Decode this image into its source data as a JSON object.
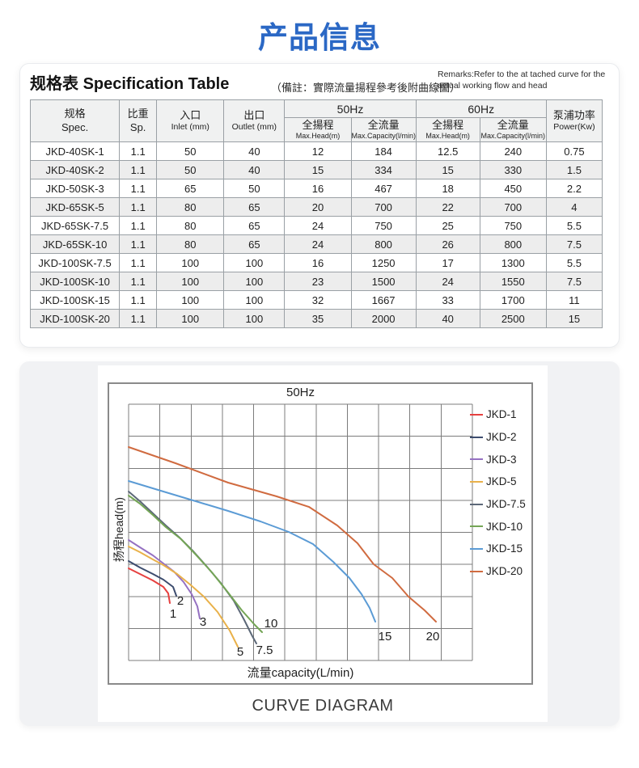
{
  "page": {
    "title": "产品信息",
    "title_color": "#2b68c5"
  },
  "spec_section": {
    "heading_cn": "规格表",
    "heading_en": "Specification Table",
    "remark_cn": "（備註：實際流量揚程參考後附曲線圖）",
    "remark_en_line1": "Remarks:Refer to the at tached curve for the",
    "remark_en_line2": "actual working flow and head",
    "table": {
      "groups": [
        {
          "label": "50Hz"
        },
        {
          "label": "60Hz"
        }
      ],
      "columns": [
        {
          "cn": "规格",
          "en": "Spec."
        },
        {
          "cn": "比重",
          "en": "Sp."
        },
        {
          "cn": "入口",
          "en": "Inlet (mm)"
        },
        {
          "cn": "出口",
          "en": "Outlet (mm)"
        },
        {
          "cn": "全揚程",
          "en": "Max.Head(m)"
        },
        {
          "cn": "全流量",
          "en": "Max.Capacity(l/min)"
        },
        {
          "cn": "全揚程",
          "en": "Max.Head(m)"
        },
        {
          "cn": "全流量",
          "en": "Max.Capacity(l/min)"
        },
        {
          "cn": "泵浦功率",
          "en": "Power(Kw)"
        }
      ],
      "rows": [
        [
          "JKD-40SK-1",
          "1.1",
          "50",
          "40",
          "12",
          "184",
          "12.5",
          "240",
          "0.75"
        ],
        [
          "JKD-40SK-2",
          "1.1",
          "50",
          "40",
          "15",
          "334",
          "15",
          "330",
          "1.5"
        ],
        [
          "JKD-50SK-3",
          "1.1",
          "65",
          "50",
          "16",
          "467",
          "18",
          "450",
          "2.2"
        ],
        [
          "JKD-65SK-5",
          "1.1",
          "80",
          "65",
          "20",
          "700",
          "22",
          "700",
          "4"
        ],
        [
          "JKD-65SK-7.5",
          "1.1",
          "80",
          "65",
          "24",
          "750",
          "25",
          "750",
          "5.5"
        ],
        [
          "JKD-65SK-10",
          "1.1",
          "80",
          "65",
          "24",
          "800",
          "26",
          "800",
          "7.5"
        ],
        [
          "JKD-100SK-7.5",
          "1.1",
          "100",
          "100",
          "16",
          "1250",
          "17",
          "1300",
          "5.5"
        ],
        [
          "JKD-100SK-10",
          "1.1",
          "100",
          "100",
          "23",
          "1500",
          "24",
          "1550",
          "7.5"
        ],
        [
          "JKD-100SK-15",
          "1.1",
          "100",
          "100",
          "32",
          "1667",
          "33",
          "1700",
          "11"
        ],
        [
          "JKD-100SK-20",
          "1.1",
          "100",
          "100",
          "35",
          "2000",
          "40",
          "2500",
          "15"
        ]
      ]
    }
  },
  "chart_section": {
    "caption": "CURVE DIAGRAM"
  },
  "chart_data": {
    "type": "line",
    "title": "50Hz",
    "xlabel": "流量capacity(L/min)",
    "ylabel": "扬程head(m)",
    "axis_tick_labels": "none",
    "grid": {
      "cols": 11,
      "rows": 8,
      "on": true,
      "line_color": "#7c7c7c"
    },
    "legend_position": "right",
    "plot_size": [
      425,
      317
    ],
    "units": "plot-pixels, y increases downward (head decreases as capacity increases)",
    "series": [
      {
        "name": "JKD-1",
        "color": "#e6403f",
        "end_label": "1",
        "label_xy": [
          55,
          259
        ],
        "points": [
          [
            0,
            203
          ],
          [
            14,
            210
          ],
          [
            30,
            218
          ],
          [
            43,
            226
          ],
          [
            49,
            234
          ],
          [
            51,
            246
          ]
        ]
      },
      {
        "name": "JKD-2",
        "color": "#3c4c6e",
        "end_label": "2",
        "label_xy": [
          64,
          243
        ],
        "points": [
          [
            0,
            194
          ],
          [
            14,
            202
          ],
          [
            30,
            210
          ],
          [
            43,
            217
          ],
          [
            55,
            226
          ],
          [
            59,
            237
          ]
        ]
      },
      {
        "name": "JKD-3",
        "color": "#9571c2",
        "end_label": "3",
        "label_xy": [
          92,
          269
        ],
        "points": [
          [
            0,
            168
          ],
          [
            14,
            177
          ],
          [
            30,
            187
          ],
          [
            43,
            197
          ],
          [
            56,
            207
          ],
          [
            68,
            220
          ],
          [
            78,
            235
          ],
          [
            85,
            250
          ],
          [
            88,
            265
          ]
        ]
      },
      {
        "name": "JKD-5",
        "color": "#e9b14a",
        "end_label": "5",
        "label_xy": [
          138,
          306
        ],
        "points": [
          [
            0,
            176
          ],
          [
            14,
            183
          ],
          [
            30,
            192
          ],
          [
            43,
            199
          ],
          [
            60,
            210
          ],
          [
            76,
            223
          ],
          [
            93,
            238
          ],
          [
            110,
            257
          ],
          [
            125,
            280
          ],
          [
            135,
            300
          ]
        ]
      },
      {
        "name": "JKD-7.5",
        "color": "#5c6878",
        "end_label": "7.5",
        "label_xy": [
          168,
          304
        ],
        "points": [
          [
            0,
            108
          ],
          [
            14,
            120
          ],
          [
            30,
            135
          ],
          [
            46,
            150
          ],
          [
            63,
            165
          ],
          [
            80,
            182
          ],
          [
            96,
            200
          ],
          [
            113,
            220
          ],
          [
            130,
            243
          ],
          [
            143,
            267
          ],
          [
            153,
            287
          ],
          [
            158,
            296
          ]
        ]
      },
      {
        "name": "JKD-10",
        "color": "#74a556",
        "end_label": "10",
        "label_xy": [
          176,
          271
        ],
        "points": [
          [
            0,
            113
          ],
          [
            14,
            123
          ],
          [
            30,
            137
          ],
          [
            46,
            152
          ],
          [
            65,
            167
          ],
          [
            83,
            186
          ],
          [
            103,
            208
          ],
          [
            123,
            233
          ],
          [
            140,
            255
          ],
          [
            156,
            273
          ],
          [
            165,
            282
          ]
        ]
      },
      {
        "name": "JKD-15",
        "color": "#5b9bd5",
        "end_label": "15",
        "label_xy": [
          317,
          287
        ],
        "points": [
          [
            0,
            95
          ],
          [
            43,
            108
          ],
          [
            83,
            120
          ],
          [
            123,
            132
          ],
          [
            163,
            145
          ],
          [
            198,
            158
          ],
          [
            228,
            173
          ],
          [
            253,
            195
          ],
          [
            273,
            215
          ],
          [
            288,
            235
          ],
          [
            298,
            252
          ],
          [
            305,
            269
          ]
        ]
      },
      {
        "name": "JKD-20",
        "color": "#d06b40",
        "end_label": "20",
        "label_xy": [
          376,
          287
        ],
        "points": [
          [
            0,
            53
          ],
          [
            58,
            73
          ],
          [
            123,
            97
          ],
          [
            183,
            114
          ],
          [
            223,
            127
          ],
          [
            258,
            150
          ],
          [
            283,
            172
          ],
          [
            303,
            198
          ],
          [
            326,
            215
          ],
          [
            346,
            238
          ],
          [
            366,
            255
          ],
          [
            380,
            269
          ]
        ]
      }
    ]
  }
}
